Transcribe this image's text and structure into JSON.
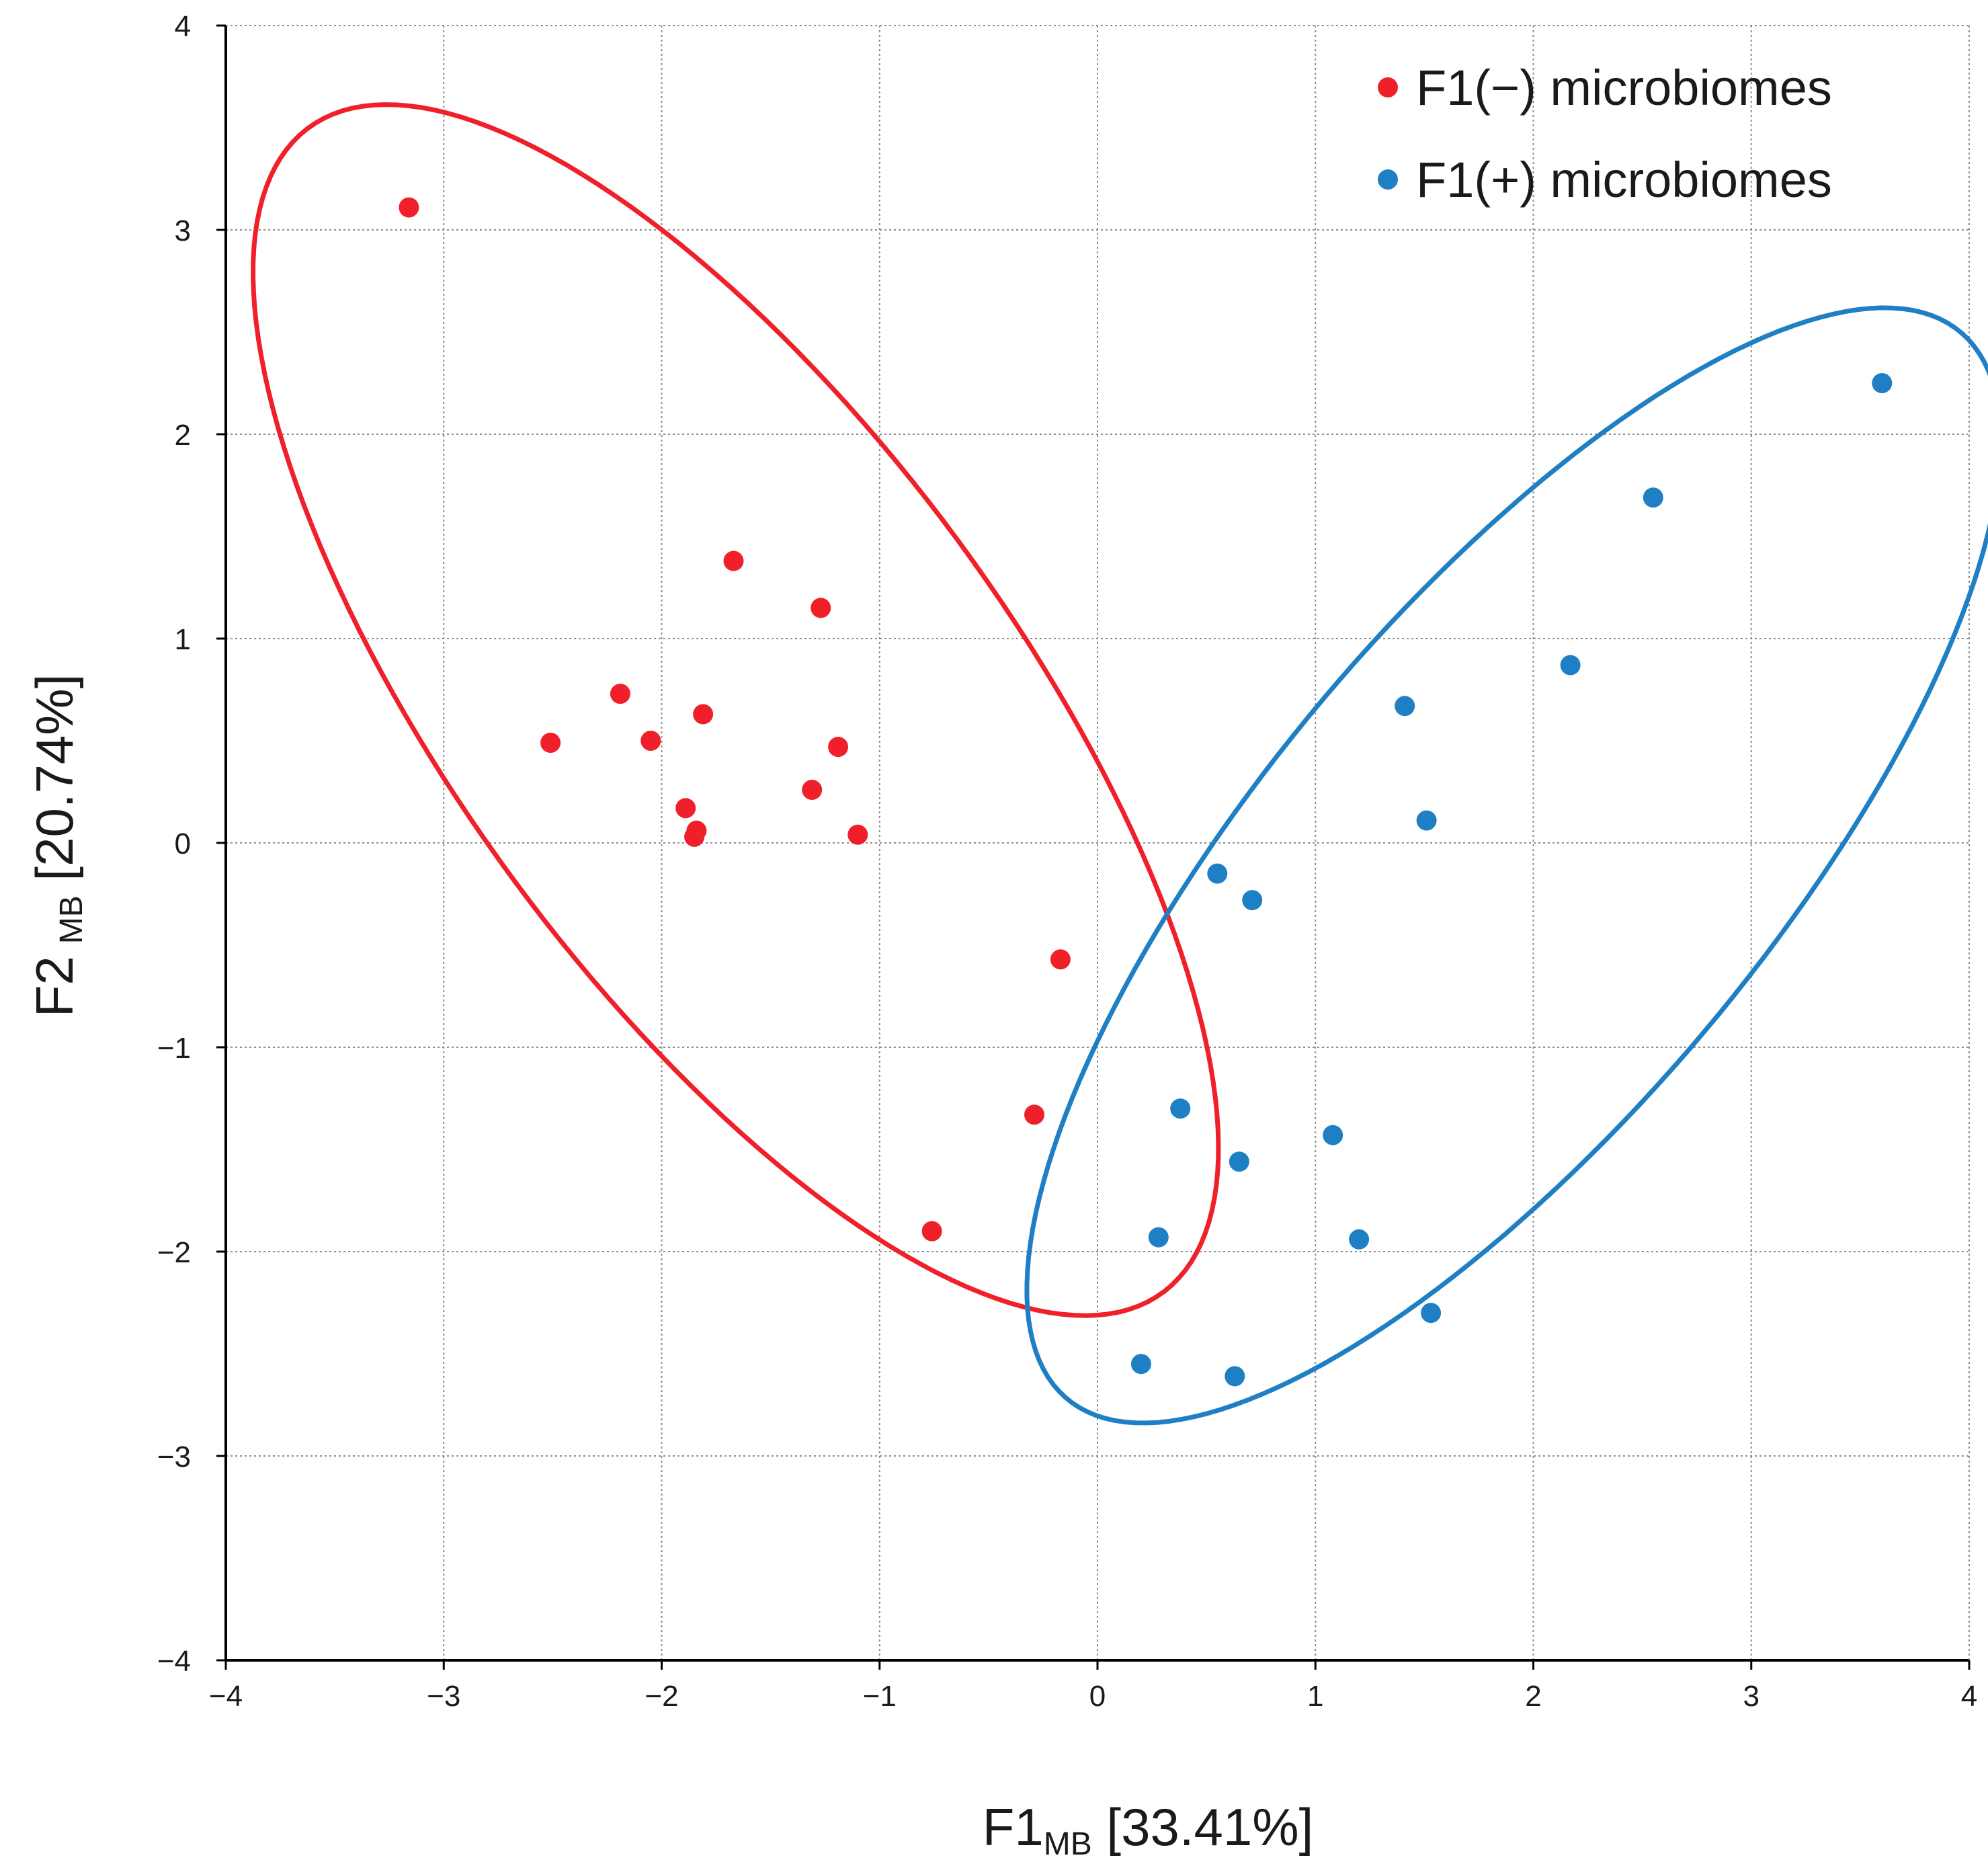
{
  "chart_data": {
    "type": "scatter",
    "title": "",
    "xlabel": {
      "main": "F1",
      "sub": "MB",
      "rest": " [33.41%]"
    },
    "ylabel": {
      "main": "F2",
      "sub": "MB",
      "rest": " [20.74%]"
    },
    "xlim": [
      -4,
      4
    ],
    "ylim": [
      -4,
      4
    ],
    "grid": true,
    "legend_position": "top-right",
    "x_ticks": [
      {
        "value": -4,
        "label": "−4"
      },
      {
        "value": -3,
        "label": "−3"
      },
      {
        "value": -2,
        "label": "−2"
      },
      {
        "value": -1,
        "label": "−1"
      },
      {
        "value": 0,
        "label": "0"
      },
      {
        "value": 1,
        "label": "1"
      },
      {
        "value": 2,
        "label": "2"
      },
      {
        "value": 3,
        "label": "3"
      },
      {
        "value": 4,
        "label": "4"
      }
    ],
    "y_ticks": [
      {
        "value": -4,
        "label": "−4"
      },
      {
        "value": -3,
        "label": "−3"
      },
      {
        "value": -2,
        "label": "−2"
      },
      {
        "value": -1,
        "label": "−1"
      },
      {
        "value": 0,
        "label": "0"
      },
      {
        "value": 1,
        "label": "1"
      },
      {
        "value": 2,
        "label": "2"
      },
      {
        "value": 3,
        "label": "3"
      },
      {
        "value": 4,
        "label": "4"
      }
    ],
    "series": [
      {
        "name": "F1(−) microbiomes",
        "color": "#f0202a",
        "points": [
          [
            -3.16,
            3.11
          ],
          [
            -1.67,
            1.38
          ],
          [
            -1.27,
            1.15
          ],
          [
            -2.19,
            0.73
          ],
          [
            -1.81,
            0.63
          ],
          [
            -2.51,
            0.49
          ],
          [
            -2.05,
            0.5
          ],
          [
            -1.19,
            0.47
          ],
          [
            -1.31,
            0.26
          ],
          [
            -1.89,
            0.17
          ],
          [
            -1.84,
            0.06
          ],
          [
            -1.85,
            0.03
          ],
          [
            -1.1,
            0.04
          ],
          [
            -0.17,
            -0.57
          ],
          [
            -0.29,
            -1.33
          ],
          [
            -0.76,
            -1.9
          ]
        ],
        "ellipse": {
          "center": [
            -1.66,
            0.65
          ],
          "semi_major": 3.46,
          "semi_minor": 1.31,
          "angle_deg": -56.1
        }
      },
      {
        "name": "F1(+) microbiomes",
        "color": "#1f7fc4",
        "points": [
          [
            3.6,
            2.25
          ],
          [
            2.55,
            1.69
          ],
          [
            2.17,
            0.87
          ],
          [
            1.41,
            0.67
          ],
          [
            1.51,
            0.11
          ],
          [
            0.55,
            -0.15
          ],
          [
            0.71,
            -0.28
          ],
          [
            0.38,
            -1.3
          ],
          [
            1.08,
            -1.43
          ],
          [
            0.65,
            -1.56
          ],
          [
            0.28,
            -1.93
          ],
          [
            1.2,
            -1.94
          ],
          [
            1.53,
            -2.3
          ],
          [
            0.2,
            -2.55
          ],
          [
            0.63,
            -2.61
          ]
        ],
        "ellipse": {
          "center": [
            1.91,
            -0.11
          ],
          "semi_major": 3.32,
          "semi_minor": 1.19,
          "angle_deg": 52.4
        }
      }
    ]
  }
}
